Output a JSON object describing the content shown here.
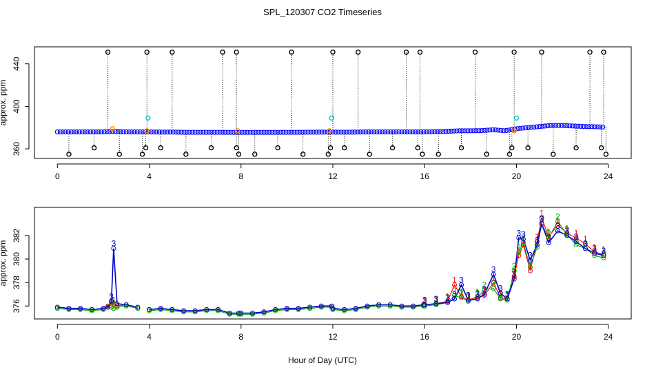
{
  "chart_data": [
    {
      "id": "top",
      "type": "scatter",
      "title": "SPL_120307  CO2 Timeseries",
      "xlabel": "",
      "ylabel": "approx. ppm",
      "xlim": [
        -1,
        25
      ],
      "ylim": [
        351,
        456
      ],
      "xticks": [
        0,
        4,
        8,
        12,
        16,
        20,
        24
      ],
      "yticks": [
        360,
        400,
        440
      ],
      "baseline_points": {
        "name": "raw CO2 (blue)",
        "color": "#0000ff",
        "x": [
          0,
          0.5,
          1,
          1.5,
          2,
          2.5,
          3,
          3.5,
          4,
          4.5,
          5,
          5.5,
          6,
          6.5,
          7,
          7.5,
          8,
          8.5,
          9,
          9.5,
          10,
          10.5,
          11,
          11.5,
          12,
          12.5,
          13,
          13.5,
          14,
          14.5,
          15,
          15.5,
          16,
          16.5,
          17,
          17.5,
          18,
          18.5,
          19,
          19.5,
          20,
          20.5,
          21,
          21.5,
          22,
          22.5,
          23,
          23.5,
          23.8
        ],
        "y": [
          376,
          376,
          376,
          376,
          376,
          376.5,
          376,
          376,
          376,
          375.8,
          375.8,
          375.6,
          375.6,
          375.6,
          375.6,
          375.5,
          375.5,
          375.5,
          375.5,
          375.5,
          375.6,
          375.6,
          375.7,
          375.8,
          375.8,
          375.7,
          375.8,
          376,
          376,
          376,
          376,
          376,
          376,
          376.2,
          376.5,
          377,
          377,
          377.2,
          378,
          377,
          379,
          380,
          381,
          382,
          382,
          381.5,
          381,
          380.8,
          380.5
        ]
      },
      "high_spikes": {
        "name": "upper outliers",
        "color": "#000000",
        "x": [
          2.2,
          3.9,
          5.0,
          7.2,
          7.8,
          10.2,
          12.0,
          13.1,
          15.2,
          15.8,
          18.2,
          19.9,
          21.1,
          23.2,
          23.8
        ],
        "y": [
          451,
          451,
          451,
          451,
          451,
          451,
          451,
          451,
          451,
          451,
          451,
          451,
          451,
          451,
          451
        ]
      },
      "low_spikes": {
        "name": "lower outliers",
        "color": "#000000",
        "x": [
          0.5,
          1.6,
          2.7,
          3.7,
          3.85,
          4.5,
          5.6,
          6.7,
          7.8,
          7.9,
          8.6,
          9.6,
          10.7,
          11.8,
          11.9,
          12.5,
          13.6,
          14.6,
          15.7,
          15.9,
          16.6,
          17.6,
          18.7,
          19.7,
          19.8,
          20.5,
          21.6,
          22.6,
          23.7,
          23.9
        ],
        "y": [
          355,
          361,
          355,
          355,
          361,
          361,
          355,
          361,
          361,
          355,
          355,
          361,
          355,
          355,
          361,
          361,
          355,
          361,
          361,
          355,
          355,
          361,
          355,
          355,
          361,
          361,
          355,
          361,
          361,
          355
        ]
      },
      "cyan_points": {
        "name": "flagged (cyan)",
        "color": "#00cccc",
        "x": [
          3.95,
          11.95,
          20.0
        ],
        "y": [
          389,
          389,
          389
        ]
      },
      "orange_points": {
        "name": "flagged (orange)",
        "color": "#ff8800",
        "x": [
          2.4,
          3.9,
          7.85,
          11.85,
          19.9
        ],
        "y": [
          379,
          377,
          377,
          377,
          377
        ]
      }
    },
    {
      "id": "bottom",
      "type": "line",
      "title": "",
      "xlabel": "Hour of Day (UTC)",
      "ylabel": "approx. ppm",
      "xlim": [
        -1,
        25
      ],
      "ylim": [
        374.9,
        384.4
      ],
      "xticks": [
        0,
        4,
        8,
        12,
        16,
        20,
        24
      ],
      "yticks": [
        376,
        378,
        380,
        382
      ],
      "x": [
        0,
        0.5,
        1,
        1.5,
        2,
        2.2,
        2.35,
        2.45,
        2.6,
        3,
        3.5,
        4,
        4.5,
        5,
        5.5,
        6,
        6.5,
        7,
        7.5,
        7.9,
        8,
        8.5,
        9,
        9.5,
        10,
        10.5,
        11,
        11.5,
        11.95,
        12,
        12.5,
        13,
        13.5,
        14,
        14.5,
        15,
        15.5,
        15.95,
        16,
        16.5,
        17,
        17.3,
        17.6,
        17.9,
        18.3,
        18.6,
        19,
        19.3,
        19.6,
        19.9,
        20.1,
        20.3,
        20.6,
        20.9,
        21.1,
        21.4,
        21.8,
        22.2,
        22.6,
        23,
        23.4,
        23.8
      ],
      "series": [
        {
          "name": "1",
          "color": "#ff0000",
          "values": [
            375.9,
            375.8,
            375.8,
            375.7,
            375.8,
            376.0,
            376.3,
            376.1,
            376.0,
            376.1,
            375.9,
            375.7,
            375.8,
            375.7,
            375.6,
            375.6,
            375.7,
            375.7,
            375.4,
            375.4,
            375.4,
            375.4,
            375.5,
            375.7,
            375.8,
            375.8,
            375.9,
            376.0,
            376.0,
            375.8,
            375.7,
            375.8,
            376.0,
            376.1,
            376.1,
            376.0,
            376.0,
            376.1,
            376.1,
            376.2,
            376.4,
            377.8,
            376.8,
            376.5,
            376.8,
            376.9,
            378.0,
            376.7,
            376.6,
            378.5,
            380.3,
            381.2,
            379.0,
            381.5,
            383.5,
            381.9,
            382.9,
            382.2,
            381.8,
            381.3,
            380.6,
            380.4
          ]
        },
        {
          "name": "2",
          "color": "#00aa00",
          "values": [
            375.8,
            375.7,
            375.7,
            375.6,
            375.7,
            375.9,
            375.9,
            375.8,
            375.9,
            376.0,
            375.8,
            375.6,
            375.7,
            375.6,
            375.5,
            375.5,
            375.6,
            375.6,
            375.3,
            375.3,
            375.3,
            375.3,
            375.4,
            375.6,
            375.7,
            375.7,
            375.8,
            375.9,
            375.9,
            375.7,
            375.6,
            375.7,
            375.9,
            376.0,
            376.0,
            375.9,
            375.9,
            376.0,
            376.0,
            376.1,
            376.3,
            376.9,
            376.7,
            376.4,
            376.7,
            377.4,
            377.5,
            376.6,
            376.5,
            379.0,
            380.6,
            381.4,
            379.3,
            381.0,
            383.0,
            381.8,
            383.2,
            382.1,
            381.2,
            380.9,
            380.3,
            380.1
          ]
        },
        {
          "name": "3",
          "color": "#0000cc",
          "values": [
            375.9,
            375.8,
            375.8,
            375.7,
            375.8,
            375.9,
            376.4,
            380.9,
            376.2,
            376.1,
            375.9,
            375.7,
            375.8,
            375.7,
            375.6,
            375.6,
            375.7,
            375.7,
            375.4,
            375.4,
            375.4,
            375.4,
            375.5,
            375.7,
            375.8,
            375.8,
            375.9,
            376.0,
            376.0,
            375.8,
            375.7,
            375.8,
            376.0,
            376.1,
            376.1,
            376.0,
            376.0,
            376.1,
            376.1,
            376.2,
            376.3,
            376.6,
            377.8,
            376.5,
            376.6,
            377.0,
            378.7,
            377.1,
            376.6,
            378.3,
            381.8,
            381.7,
            379.9,
            381.2,
            383.0,
            381.4,
            382.4,
            382.0,
            381.5,
            380.9,
            380.5,
            380.3
          ]
        }
      ]
    }
  ]
}
